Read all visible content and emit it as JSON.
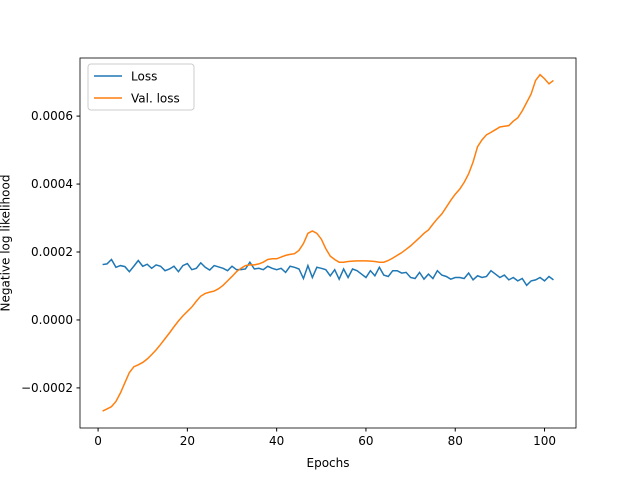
{
  "chart_data": {
    "type": "line",
    "xlabel": "Epochs",
    "ylabel": "Negative log likelihood",
    "legend": "upper left",
    "x": [
      1,
      2,
      3,
      4,
      5,
      6,
      7,
      8,
      9,
      10,
      11,
      12,
      13,
      14,
      15,
      16,
      17,
      18,
      19,
      20,
      21,
      22,
      23,
      24,
      25,
      26,
      27,
      28,
      29,
      30,
      31,
      32,
      33,
      34,
      35,
      36,
      37,
      38,
      39,
      40,
      41,
      42,
      43,
      44,
      45,
      46,
      47,
      48,
      49,
      50,
      51,
      52,
      53,
      54,
      55,
      56,
      57,
      58,
      59,
      60,
      61,
      62,
      63,
      64,
      65,
      66,
      67,
      68,
      69,
      70,
      71,
      72,
      73,
      74,
      75,
      76,
      77,
      78,
      79,
      80,
      81,
      82,
      83,
      84,
      85,
      86,
      87,
      88,
      89,
      90,
      91,
      92,
      93,
      94,
      95,
      96,
      97,
      98,
      99,
      100,
      101,
      102
    ],
    "series": [
      {
        "name": "Loss",
        "color": "#1f77b4",
        "values": [
          0.000163,
          0.000165,
          0.000178,
          0.000155,
          0.00016,
          0.000157,
          0.000142,
          0.000158,
          0.000175,
          0.000158,
          0.000164,
          0.000152,
          0.000162,
          0.000158,
          0.000145,
          0.00015,
          0.000158,
          0.000142,
          0.00016,
          0.000166,
          0.000148,
          0.000152,
          0.000168,
          0.000155,
          0.000147,
          0.00016,
          0.000156,
          0.000152,
          0.000145,
          0.000158,
          0.000148,
          0.000148,
          0.00015,
          0.00017,
          0.00015,
          0.000152,
          0.000148,
          0.000158,
          0.000152,
          0.000148,
          0.000152,
          0.00014,
          0.000158,
          0.000155,
          0.00015,
          0.000122,
          0.00016,
          0.000125,
          0.000155,
          0.000152,
          0.000148,
          0.00013,
          0.000148,
          0.00012,
          0.00015,
          0.000125,
          0.00015,
          0.000145,
          0.000135,
          0.000125,
          0.000145,
          0.00013,
          0.000155,
          0.000132,
          0.000128,
          0.000145,
          0.000145,
          0.000138,
          0.00014,
          0.000125,
          0.000122,
          0.00014,
          0.00012,
          0.000135,
          0.000122,
          0.000145,
          0.000132,
          0.000128,
          0.00012,
          0.000125,
          0.000125,
          0.000122,
          0.000138,
          0.000118,
          0.00013,
          0.000125,
          0.000128,
          0.000145,
          0.000135,
          0.000125,
          0.000132,
          0.000118,
          0.000125,
          0.000115,
          0.000122,
          0.000102,
          0.000115,
          0.000118,
          0.000125,
          0.000115,
          0.000128,
          0.000118
        ]
      },
      {
        "name": "Val. loss",
        "color": "#ff7f0e",
        "values": [
          -0.000268,
          -0.000262,
          -0.000255,
          -0.00024,
          -0.000215,
          -0.000185,
          -0.000155,
          -0.000138,
          -0.000132,
          -0.000125,
          -0.000115,
          -0.000102,
          -8.8e-05,
          -7.2e-05,
          -5.5e-05,
          -3.8e-05,
          -2e-05,
          -3e-06,
          1.2e-05,
          2.5e-05,
          3.8e-05,
          5.5e-05,
          7e-05,
          7.8e-05,
          8.2e-05,
          8.5e-05,
          9.2e-05,
          0.000102,
          0.000115,
          0.000128,
          0.000142,
          0.000152,
          0.00016,
          0.000162,
          0.000162,
          0.000165,
          0.00017,
          0.000178,
          0.00018,
          0.00018,
          0.000185,
          0.00019,
          0.000193,
          0.000195,
          0.000205,
          0.000225,
          0.000255,
          0.000262,
          0.000255,
          0.000238,
          0.00021,
          0.000188,
          0.000178,
          0.00017,
          0.00017,
          0.000172,
          0.000173,
          0.000174,
          0.000174,
          0.000174,
          0.000173,
          0.000172,
          0.00017,
          0.00017,
          0.000175,
          0.000182,
          0.00019,
          0.000198,
          0.000208,
          0.000218,
          0.00023,
          0.000242,
          0.000255,
          0.000265,
          0.000282,
          0.000298,
          0.000312,
          0.000332,
          0.000352,
          0.00037,
          0.000385,
          0.000405,
          0.00043,
          0.000465,
          0.00051,
          0.00053,
          0.000545,
          0.000552,
          0.00056,
          0.000568,
          0.00057,
          0.000572,
          0.000585,
          0.000595,
          0.000615,
          0.00064,
          0.000665,
          0.000705,
          0.000722,
          0.00071,
          0.000695,
          0.000705
        ]
      }
    ],
    "xlim": [
      -4.05,
      107.05
    ],
    "xticks": [
      0,
      20,
      40,
      60,
      80,
      100
    ],
    "ylim": [
      -0.000318,
      0.000771
    ],
    "yticks": [
      {
        "value": -0.0002,
        "label": "−0.0002"
      },
      {
        "value": 0,
        "label": "0.0000"
      },
      {
        "value": 0.0002,
        "label": "0.0002"
      },
      {
        "value": 0.0004,
        "label": "0.0004"
      },
      {
        "value": 0.0006,
        "label": "0.0006"
      }
    ]
  }
}
